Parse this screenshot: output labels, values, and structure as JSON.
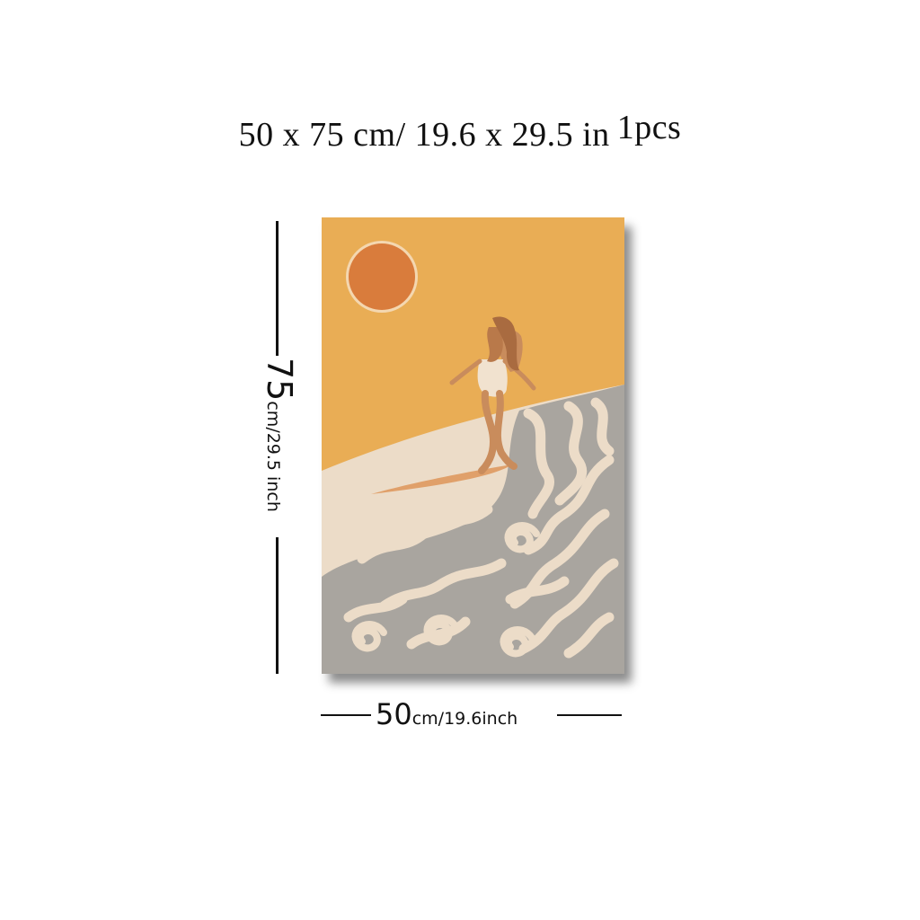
{
  "headline": {
    "size_text": "50 x 75 cm/ 19.6 x 29.5 in",
    "quantity": "1pcs"
  },
  "height_label": {
    "value": "75",
    "unit_text": "cm/29.5 inch"
  },
  "width_label": {
    "value": "50",
    "unit_text": "cm/19.6inch"
  },
  "colors": {
    "sky": "#e9ad55",
    "sun": "#d97c3c",
    "sand": "#ecdcc8",
    "wave": "#a9a59f",
    "skin": "#c98c5c",
    "board": "#e0a06a"
  }
}
